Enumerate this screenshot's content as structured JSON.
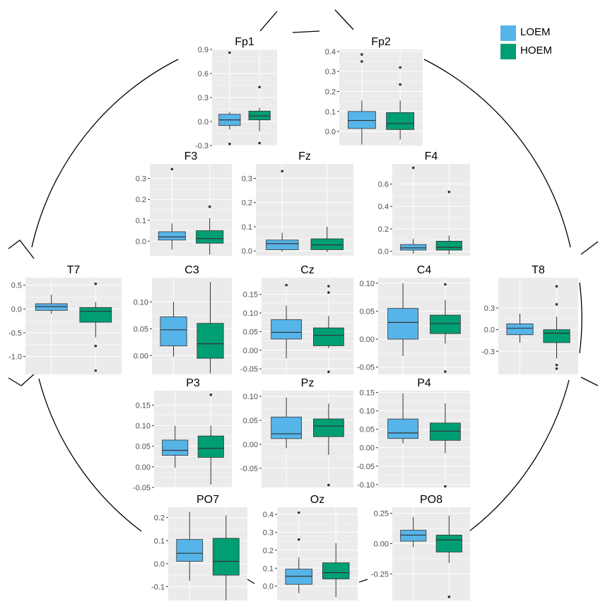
{
  "colors": {
    "LOEM": "#56B4E9",
    "HOEM": "#009E73",
    "panel_bg": "#EBEBEB",
    "grid": "#FFFFFF",
    "head": "#000000"
  },
  "legend": {
    "placement": "top-right",
    "items": [
      {
        "label": "LOEM",
        "color": "#56B4E9"
      },
      {
        "label": "HOEM",
        "color": "#009E73"
      }
    ]
  },
  "chart_data": [
    {
      "type": "box",
      "title": "Fp1",
      "ylim": [
        -0.3,
        0.9
      ],
      "yticks": [
        "-0.3",
        "0.0",
        "0.3",
        "0.6",
        "0.9"
      ],
      "categories": [
        "LOEM",
        "HOEM"
      ],
      "series": [
        {
          "name": "LOEM",
          "whisker_low": -0.1,
          "q1": -0.05,
          "median": 0.02,
          "q3": 0.09,
          "whisker_high": 0.12,
          "outliers": [
            0.86,
            -0.28
          ]
        },
        {
          "name": "HOEM",
          "whisker_low": -0.12,
          "q1": 0.02,
          "median": 0.07,
          "q3": 0.13,
          "whisker_high": 0.17,
          "outliers": [
            0.43,
            -0.27
          ]
        }
      ]
    },
    {
      "type": "box",
      "title": "Fp2",
      "ylim": [
        -0.07,
        0.41
      ],
      "yticks": [
        "0.0",
        "0.1",
        "0.2",
        "0.3",
        "0.4"
      ],
      "categories": [
        "LOEM",
        "HOEM"
      ],
      "series": [
        {
          "name": "LOEM",
          "whisker_low": -0.065,
          "q1": 0.015,
          "median": 0.055,
          "q3": 0.1,
          "whisker_high": 0.155,
          "outliers": [
            0.385,
            0.35
          ]
        },
        {
          "name": "HOEM",
          "whisker_low": -0.04,
          "q1": 0.01,
          "median": 0.04,
          "q3": 0.095,
          "whisker_high": 0.155,
          "outliers": [
            0.32,
            0.235
          ]
        }
      ]
    },
    {
      "type": "box",
      "title": "F3",
      "ylim": [
        -0.07,
        0.37
      ],
      "yticks": [
        "0.0",
        "0.1",
        "0.2",
        "0.3"
      ],
      "categories": [
        "LOEM",
        "HOEM"
      ],
      "series": [
        {
          "name": "LOEM",
          "whisker_low": -0.04,
          "q1": 0.005,
          "median": 0.02,
          "q3": 0.045,
          "whisker_high": 0.085,
          "outliers": [
            0.345
          ]
        },
        {
          "name": "HOEM",
          "whisker_low": -0.065,
          "q1": -0.01,
          "median": 0.012,
          "q3": 0.05,
          "whisker_high": 0.11,
          "outliers": [
            0.165
          ]
        }
      ]
    },
    {
      "type": "box",
      "title": "Fz",
      "ylim": [
        -0.02,
        0.36
      ],
      "yticks": [
        "0.0",
        "0.1",
        "0.2",
        "0.3"
      ],
      "categories": [
        "LOEM",
        "HOEM"
      ],
      "series": [
        {
          "name": "LOEM",
          "whisker_low": -0.003,
          "q1": 0.005,
          "median": 0.03,
          "q3": 0.045,
          "whisker_high": 0.075,
          "outliers": [
            0.33
          ]
        },
        {
          "name": "HOEM",
          "whisker_low": -0.005,
          "q1": 0.005,
          "median": 0.025,
          "q3": 0.05,
          "whisker_high": 0.1,
          "outliers": []
        }
      ]
    },
    {
      "type": "box",
      "title": "F4",
      "ylim": [
        -0.04,
        0.78
      ],
      "yticks": [
        "0.0",
        "0.2",
        "0.4",
        "0.6"
      ],
      "categories": [
        "LOEM",
        "HOEM"
      ],
      "series": [
        {
          "name": "LOEM",
          "whisker_low": -0.02,
          "q1": 0.01,
          "median": 0.03,
          "q3": 0.06,
          "whisker_high": 0.11,
          "outliers": [
            0.745
          ]
        },
        {
          "name": "HOEM",
          "whisker_low": -0.03,
          "q1": 0.01,
          "median": 0.035,
          "q3": 0.09,
          "whisker_high": 0.14,
          "outliers": [
            0.53
          ]
        }
      ]
    },
    {
      "type": "box",
      "title": "T7",
      "ylim": [
        -1.38,
        0.66
      ],
      "yticks": [
        "-1.0",
        "-0.5",
        "0.0",
        "0.5"
      ],
      "categories": [
        "LOEM",
        "HOEM"
      ],
      "series": [
        {
          "name": "LOEM",
          "whisker_low": -0.1,
          "q1": -0.03,
          "median": 0.05,
          "q3": 0.11,
          "whisker_high": 0.3,
          "outliers": []
        },
        {
          "name": "HOEM",
          "whisker_low": -0.6,
          "q1": -0.28,
          "median": -0.05,
          "q3": 0.03,
          "whisker_high": 0.15,
          "outliers": [
            0.53,
            -0.78,
            -1.3
          ]
        }
      ]
    },
    {
      "type": "box",
      "title": "C3",
      "ylim": [
        -0.035,
        0.145
      ],
      "yticks": [
        "0.00",
        "0.05",
        "0.10"
      ],
      "categories": [
        "LOEM",
        "HOEM"
      ],
      "series": [
        {
          "name": "LOEM",
          "whisker_low": -0.002,
          "q1": 0.018,
          "median": 0.048,
          "q3": 0.072,
          "whisker_high": 0.1,
          "outliers": []
        },
        {
          "name": "HOEM",
          "whisker_low": -0.033,
          "q1": -0.005,
          "median": 0.022,
          "q3": 0.06,
          "whisker_high": 0.137,
          "outliers": []
        }
      ]
    },
    {
      "type": "box",
      "title": "Cz",
      "ylim": [
        -0.065,
        0.195
      ],
      "yticks": [
        "-0.05",
        "0.00",
        "0.05",
        "0.10",
        "0.15"
      ],
      "categories": [
        "LOEM",
        "HOEM"
      ],
      "series": [
        {
          "name": "LOEM",
          "whisker_low": -0.022,
          "q1": 0.03,
          "median": 0.048,
          "q3": 0.082,
          "whisker_high": 0.12,
          "outliers": [
            0.175
          ]
        },
        {
          "name": "HOEM",
          "whisker_low": 0.005,
          "q1": 0.012,
          "median": 0.04,
          "q3": 0.06,
          "whisker_high": 0.092,
          "outliers": [
            0.172,
            0.155,
            -0.058
          ]
        }
      ]
    },
    {
      "type": "box",
      "title": "C4",
      "ylim": [
        -0.063,
        0.11
      ],
      "yticks": [
        "-0.05",
        "0.00",
        "0.05",
        "0.10"
      ],
      "categories": [
        "LOEM",
        "HOEM"
      ],
      "series": [
        {
          "name": "LOEM",
          "whisker_low": -0.03,
          "q1": 0.0,
          "median": 0.03,
          "q3": 0.055,
          "whisker_high": 0.1,
          "outliers": []
        },
        {
          "name": "HOEM",
          "whisker_low": -0.008,
          "q1": 0.01,
          "median": 0.028,
          "q3": 0.043,
          "whisker_high": 0.07,
          "outliers": [
            0.098,
            -0.058
          ]
        }
      ]
    },
    {
      "type": "box",
      "title": "T8",
      "ylim": [
        -0.62,
        0.72
      ],
      "yticks": [
        "-0.3",
        "0.0",
        "0.3"
      ],
      "categories": [
        "LOEM",
        "HOEM"
      ],
      "series": [
        {
          "name": "LOEM",
          "whisker_low": -0.18,
          "q1": -0.07,
          "median": 0.02,
          "q3": 0.08,
          "whisker_high": 0.22,
          "outliers": []
        },
        {
          "name": "HOEM",
          "whisker_low": -0.4,
          "q1": -0.18,
          "median": -0.05,
          "q3": 0.0,
          "whisker_high": 0.18,
          "outliers": [
            0.6,
            0.35,
            -0.49,
            -0.54
          ]
        }
      ]
    },
    {
      "type": "box",
      "title": "P3",
      "ylim": [
        -0.05,
        0.185
      ],
      "yticks": [
        "-0.05",
        "0.00",
        "0.05",
        "0.10",
        "0.15"
      ],
      "categories": [
        "LOEM",
        "HOEM"
      ],
      "series": [
        {
          "name": "LOEM",
          "whisker_low": -0.002,
          "q1": 0.028,
          "median": 0.04,
          "q3": 0.065,
          "whisker_high": 0.1,
          "outliers": []
        },
        {
          "name": "HOEM",
          "whisker_low": -0.043,
          "q1": 0.023,
          "median": 0.045,
          "q3": 0.075,
          "whisker_high": 0.1,
          "outliers": [
            0.175
          ]
        }
      ]
    },
    {
      "type": "box",
      "title": "Pz",
      "ylim": [
        -0.09,
        0.112
      ],
      "yticks": [
        "-0.05",
        "0.00",
        "0.05",
        "0.10"
      ],
      "categories": [
        "LOEM",
        "HOEM"
      ],
      "series": [
        {
          "name": "LOEM",
          "whisker_low": -0.008,
          "q1": 0.012,
          "median": 0.022,
          "q3": 0.057,
          "whisker_high": 0.098,
          "outliers": []
        },
        {
          "name": "HOEM",
          "whisker_low": -0.022,
          "q1": 0.016,
          "median": 0.038,
          "q3": 0.053,
          "whisker_high": 0.085,
          "outliers": [
            -0.085
          ]
        }
      ]
    },
    {
      "type": "box",
      "title": "P4",
      "ylim": [
        -0.108,
        0.155
      ],
      "yticks": [
        "-0.10",
        "-0.05",
        "0.00",
        "0.05",
        "0.10",
        "0.15"
      ],
      "categories": [
        "LOEM",
        "HOEM"
      ],
      "series": [
        {
          "name": "LOEM",
          "whisker_low": 0.012,
          "q1": 0.025,
          "median": 0.04,
          "q3": 0.078,
          "whisker_high": 0.148,
          "outliers": []
        },
        {
          "name": "HOEM",
          "whisker_low": -0.015,
          "q1": 0.02,
          "median": 0.045,
          "q3": 0.067,
          "whisker_high": 0.12,
          "outliers": [
            -0.105
          ]
        }
      ]
    },
    {
      "type": "box",
      "title": "PO7",
      "ylim": [
        -0.16,
        0.245
      ],
      "yticks": [
        "-0.1",
        "0.0",
        "0.1",
        "0.2"
      ],
      "categories": [
        "LOEM",
        "HOEM"
      ],
      "series": [
        {
          "name": "LOEM",
          "whisker_low": -0.075,
          "q1": 0.01,
          "median": 0.045,
          "q3": 0.105,
          "whisker_high": 0.225,
          "outliers": []
        },
        {
          "name": "HOEM",
          "whisker_low": -0.16,
          "q1": -0.05,
          "median": 0.01,
          "q3": 0.11,
          "whisker_high": 0.21,
          "outliers": []
        }
      ]
    },
    {
      "type": "box",
      "title": "Oz",
      "ylim": [
        -0.08,
        0.44
      ],
      "yticks": [
        "0.0",
        "0.1",
        "0.2",
        "0.3",
        "0.4"
      ],
      "categories": [
        "LOEM",
        "HOEM"
      ],
      "series": [
        {
          "name": "LOEM",
          "whisker_low": -0.04,
          "q1": 0.01,
          "median": 0.055,
          "q3": 0.095,
          "whisker_high": 0.16,
          "outliers": [
            0.41,
            0.26
          ]
        },
        {
          "name": "HOEM",
          "whisker_low": -0.06,
          "q1": 0.04,
          "median": 0.075,
          "q3": 0.13,
          "whisker_high": 0.24,
          "outliers": []
        }
      ]
    },
    {
      "type": "box",
      "title": "PO8",
      "ylim": [
        -0.47,
        0.3
      ],
      "yticks": [
        "-0.25",
        "0.00",
        "0.25"
      ],
      "categories": [
        "LOEM",
        "HOEM"
      ],
      "series": [
        {
          "name": "LOEM",
          "whisker_low": -0.03,
          "q1": 0.02,
          "median": 0.07,
          "q3": 0.11,
          "whisker_high": 0.22,
          "outliers": []
        },
        {
          "name": "HOEM",
          "whisker_low": -0.16,
          "q1": -0.07,
          "median": 0.03,
          "q3": 0.07,
          "whisker_high": 0.23,
          "outliers": [
            -0.44
          ]
        }
      ]
    }
  ]
}
